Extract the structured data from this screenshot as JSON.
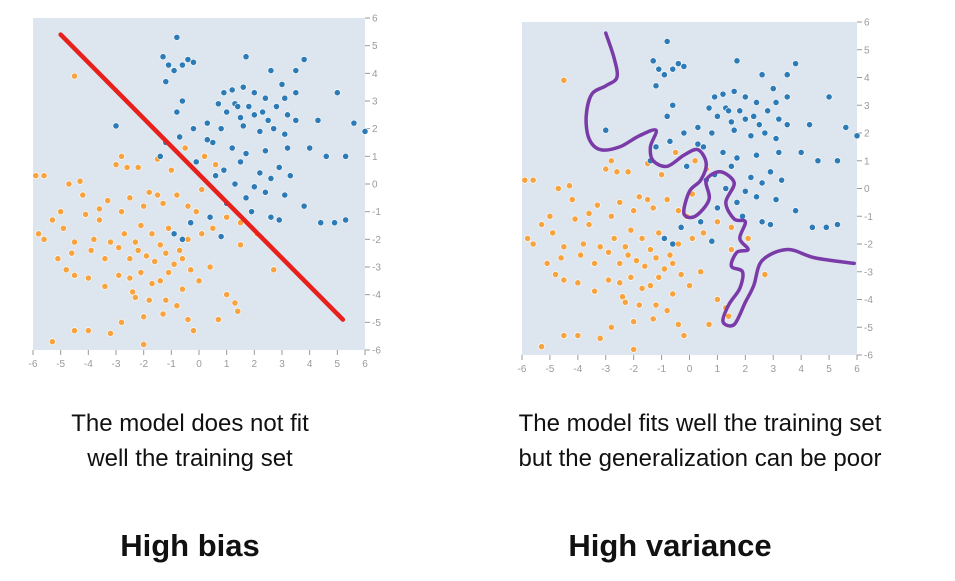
{
  "colors": {
    "background": "#dde6ee",
    "class_a": "#2c7bb6",
    "class_b": "#f7a33f",
    "linear_boundary": "#e8201c",
    "overfit_boundary": "#7a3aa8",
    "tick": "#9a9a9a"
  },
  "chart_data": [
    {
      "type": "scatter",
      "xlim": [
        -6,
        6
      ],
      "ylim": [
        -6,
        6
      ],
      "xticks": [
        "-6",
        "-5",
        "-4",
        "-3",
        "-2",
        "-1",
        "0",
        "1",
        "2",
        "3",
        "4",
        "5",
        "6"
      ],
      "yticks": [
        "6",
        "5",
        "4",
        "3",
        "2",
        "1",
        "0",
        "-1",
        "-2",
        "-3",
        "-4",
        "-5",
        "-6"
      ],
      "boundary": {
        "type": "line",
        "points": [
          [
            -5,
            5.4
          ],
          [
            5.2,
            -4.9
          ]
        ]
      },
      "caption": [
        "The model does not fit",
        "well the training set"
      ],
      "heading": "High bias"
    },
    {
      "type": "scatter",
      "xlim": [
        -6,
        6
      ],
      "ylim": [
        -6,
        6
      ],
      "xticks": [
        "-6",
        "-5",
        "-4",
        "-3",
        "-2",
        "-1",
        "0",
        "1",
        "2",
        "3",
        "4",
        "5",
        "6"
      ],
      "yticks": [
        "6",
        "5",
        "4",
        "3",
        "2",
        "1",
        "0",
        "-1",
        "-2",
        "-3",
        "-4",
        "-5",
        "-6"
      ],
      "boundary": {
        "type": "curve",
        "points": [
          [
            -3,
            5.6
          ],
          [
            -2.7,
            4.7
          ],
          [
            -2.6,
            4
          ],
          [
            -3,
            3.7
          ],
          [
            -3.5,
            3.4
          ],
          [
            -3.7,
            2.6
          ],
          [
            -3.6,
            1.8
          ],
          [
            -3.2,
            1.4
          ],
          [
            -2.5,
            1.5
          ],
          [
            -1.8,
            1.9
          ],
          [
            -1.2,
            2.1
          ],
          [
            -1.4,
            1.5
          ],
          [
            -1.3,
            1.0
          ],
          [
            -0.8,
            0.8
          ],
          [
            -0.2,
            1.2
          ],
          [
            0.3,
            1.4
          ],
          [
            0.6,
            0.9
          ],
          [
            0.4,
            0.3
          ],
          [
            0,
            -0.1
          ],
          [
            -0.2,
            -0.9
          ],
          [
            0.2,
            -1.0
          ],
          [
            0.7,
            -0.4
          ],
          [
            0.6,
            0.3
          ],
          [
            1.1,
            0.6
          ],
          [
            1.6,
            0.2
          ],
          [
            1.3,
            -0.5
          ],
          [
            1.6,
            -1.1
          ],
          [
            2.0,
            -1.2
          ],
          [
            1.8,
            -1.8
          ],
          [
            2.1,
            -2.2
          ],
          [
            1.7,
            -2.3
          ],
          [
            1.5,
            -2.8
          ],
          [
            1.9,
            -3.0
          ],
          [
            1.8,
            -3.6
          ],
          [
            1.4,
            -4.2
          ],
          [
            1.2,
            -4.8
          ],
          [
            1.6,
            -4.9
          ],
          [
            2.0,
            -4.1
          ],
          [
            2.3,
            -3.5
          ],
          [
            2.6,
            -2.6
          ],
          [
            3.5,
            -2.2
          ],
          [
            4.5,
            -2.5
          ],
          [
            5.9,
            -2.7
          ]
        ]
      },
      "caption": [
        "The model fits well the training set",
        "but the generalization can be poor"
      ],
      "heading": "High variance"
    }
  ],
  "points": {
    "class_a": [
      [
        -0.8,
        5.3
      ],
      [
        -1.3,
        4.6
      ],
      [
        -0.4,
        4.5
      ],
      [
        -0.6,
        4.3
      ],
      [
        -0.2,
        4.4
      ],
      [
        -1.1,
        4.3
      ],
      [
        -0.9,
        4.1
      ],
      [
        1.7,
        4.6
      ],
      [
        3.8,
        4.5
      ],
      [
        3.5,
        4.1
      ],
      [
        2.6,
        4.1
      ],
      [
        3.0,
        3.6
      ],
      [
        -1.2,
        3.7
      ],
      [
        0.9,
        3.3
      ],
      [
        1.2,
        3.4
      ],
      [
        1.6,
        3.5
      ],
      [
        2.0,
        3.3
      ],
      [
        2.4,
        3.1
      ],
      [
        3.1,
        3.1
      ],
      [
        5.0,
        3.3
      ],
      [
        -0.6,
        3.0
      ],
      [
        0.7,
        2.9
      ],
      [
        1.3,
        2.9
      ],
      [
        1.8,
        2.8
      ],
      [
        2.3,
        2.6
      ],
      [
        2.8,
        2.8
      ],
      [
        3.2,
        2.5
      ],
      [
        1.0,
        2.6
      ],
      [
        1.5,
        2.4
      ],
      [
        2.0,
        2.5
      ],
      [
        2.5,
        2.3
      ],
      [
        3.5,
        2.3
      ],
      [
        -0.8,
        2.6
      ],
      [
        -0.2,
        2.0
      ],
      [
        0.3,
        2.2
      ],
      [
        0.8,
        2.0
      ],
      [
        1.6,
        2.1
      ],
      [
        2.2,
        1.9
      ],
      [
        2.7,
        2.0
      ],
      [
        3.1,
        1.8
      ],
      [
        4.3,
        2.3
      ],
      [
        5.6,
        2.2
      ],
      [
        6.0,
        1.9
      ],
      [
        -1.2,
        1.5
      ],
      [
        -0.7,
        1.7
      ],
      [
        0.5,
        1.5
      ],
      [
        1.2,
        1.3
      ],
      [
        1.7,
        1.1
      ],
      [
        2.4,
        1.2
      ],
      [
        3.2,
        1.3
      ],
      [
        4.0,
        1.3
      ],
      [
        4.6,
        1.0
      ],
      [
        5.3,
        1.0
      ],
      [
        -1.4,
        1.0
      ],
      [
        -0.1,
        0.8
      ],
      [
        0.9,
        0.5
      ],
      [
        1.5,
        0.8
      ],
      [
        2.2,
        0.4
      ],
      [
        2.9,
        0.6
      ],
      [
        -3.0,
        2.1
      ],
      [
        0.6,
        0.3
      ],
      [
        1.3,
        0.0
      ],
      [
        2.0,
        -0.1
      ],
      [
        2.6,
        0.2
      ],
      [
        3.3,
        0.3
      ],
      [
        1.7,
        -0.5
      ],
      [
        2.4,
        -0.3
      ],
      [
        3.1,
        -0.4
      ],
      [
        1.0,
        -0.7
      ],
      [
        1.9,
        -1.0
      ],
      [
        2.6,
        -1.2
      ],
      [
        2.9,
        -1.3
      ],
      [
        3.8,
        -0.8
      ],
      [
        4.4,
        -1.4
      ],
      [
        4.9,
        -1.4
      ],
      [
        5.3,
        -1.3
      ],
      [
        0.8,
        -1.9
      ],
      [
        0.4,
        -1.2
      ],
      [
        -0.3,
        -1.4
      ],
      [
        -0.6,
        -2.0
      ],
      [
        -0.9,
        -1.8
      ],
      [
        1.4,
        2.8
      ],
      [
        3.5,
        3.3
      ],
      [
        0.3,
        1.6
      ]
    ],
    "class_b": [
      [
        -4.5,
        3.9
      ],
      [
        -2.8,
        1.0
      ],
      [
        -5.6,
        0.3
      ],
      [
        -5.9,
        0.3
      ],
      [
        -4.3,
        0.1
      ],
      [
        -4.7,
        0.0
      ],
      [
        -3.0,
        0.7
      ],
      [
        -2.6,
        0.6
      ],
      [
        -2.2,
        0.6
      ],
      [
        -1.5,
        0.9
      ],
      [
        -1.0,
        0.5
      ],
      [
        -0.5,
        1.3
      ],
      [
        0.2,
        1.0
      ],
      [
        -5.0,
        -1.0
      ],
      [
        -5.3,
        -1.3
      ],
      [
        -4.9,
        -1.6
      ],
      [
        -4.1,
        -1.1
      ],
      [
        -3.6,
        -0.9
      ],
      [
        -3.3,
        -0.6
      ],
      [
        -2.5,
        -0.5
      ],
      [
        -2.0,
        -0.8
      ],
      [
        -1.8,
        -0.3
      ],
      [
        -1.5,
        -0.4
      ],
      [
        -1.3,
        -0.7
      ],
      [
        -0.8,
        -0.4
      ],
      [
        -0.4,
        -0.8
      ],
      [
        0.1,
        -0.2
      ],
      [
        0.6,
        0.7
      ],
      [
        -5.8,
        -1.8
      ],
      [
        -5.6,
        -2.0
      ],
      [
        -4.5,
        -2.1
      ],
      [
        -3.8,
        -2.0
      ],
      [
        -3.2,
        -2.1
      ],
      [
        -2.7,
        -1.8
      ],
      [
        -2.3,
        -2.1
      ],
      [
        -2.1,
        -1.5
      ],
      [
        -1.7,
        -1.8
      ],
      [
        -1.4,
        -2.2
      ],
      [
        -1.1,
        -1.6
      ],
      [
        -0.7,
        -2.4
      ],
      [
        -0.4,
        -2.0
      ],
      [
        0.1,
        -1.8
      ],
      [
        0.5,
        -1.6
      ],
      [
        1.0,
        -1.2
      ],
      [
        1.5,
        -1.4
      ],
      [
        -5.1,
        -2.7
      ],
      [
        -4.8,
        -3.1
      ],
      [
        -4.6,
        -2.5
      ],
      [
        -3.9,
        -2.4
      ],
      [
        -3.4,
        -2.7
      ],
      [
        -2.9,
        -2.3
      ],
      [
        -2.5,
        -2.7
      ],
      [
        -2.2,
        -2.4
      ],
      [
        -1.9,
        -2.6
      ],
      [
        -1.6,
        -2.8
      ],
      [
        -1.2,
        -2.5
      ],
      [
        -0.9,
        -2.9
      ],
      [
        -0.6,
        -2.7
      ],
      [
        -0.3,
        -3.1
      ],
      [
        0.4,
        -3.0
      ],
      [
        1.5,
        -2.2
      ],
      [
        2.1,
        -1.8
      ],
      [
        2.7,
        -3.1
      ],
      [
        -4.5,
        -3.3
      ],
      [
        -4.0,
        -3.4
      ],
      [
        -3.4,
        -3.7
      ],
      [
        -2.9,
        -3.3
      ],
      [
        -2.5,
        -3.4
      ],
      [
        -2.1,
        -3.2
      ],
      [
        -1.7,
        -3.6
      ],
      [
        -1.4,
        -3.5
      ],
      [
        -1.1,
        -3.2
      ],
      [
        -0.6,
        -3.8
      ],
      [
        0.0,
        -3.5
      ],
      [
        1.0,
        -4.0
      ],
      [
        1.3,
        -4.3
      ],
      [
        -2.3,
        -4.1
      ],
      [
        -1.8,
        -4.2
      ],
      [
        -1.2,
        -4.2
      ],
      [
        -0.8,
        -4.4
      ],
      [
        -1.3,
        -4.7
      ],
      [
        -0.4,
        -4.9
      ],
      [
        -0.2,
        -5.3
      ],
      [
        -2.0,
        -4.8
      ],
      [
        -2.8,
        -5.0
      ],
      [
        -3.2,
        -5.4
      ],
      [
        -4.0,
        -5.3
      ],
      [
        -4.5,
        -5.3
      ],
      [
        -5.3,
        -5.7
      ],
      [
        -2.0,
        -5.8
      ],
      [
        0.7,
        -4.9
      ],
      [
        1.4,
        -4.6
      ],
      [
        -3.6,
        -1.3
      ],
      [
        -2.8,
        -1.0
      ],
      [
        -2.4,
        -3.9
      ],
      [
        -0.1,
        -1.0
      ],
      [
        -4.2,
        -0.4
      ]
    ]
  }
}
